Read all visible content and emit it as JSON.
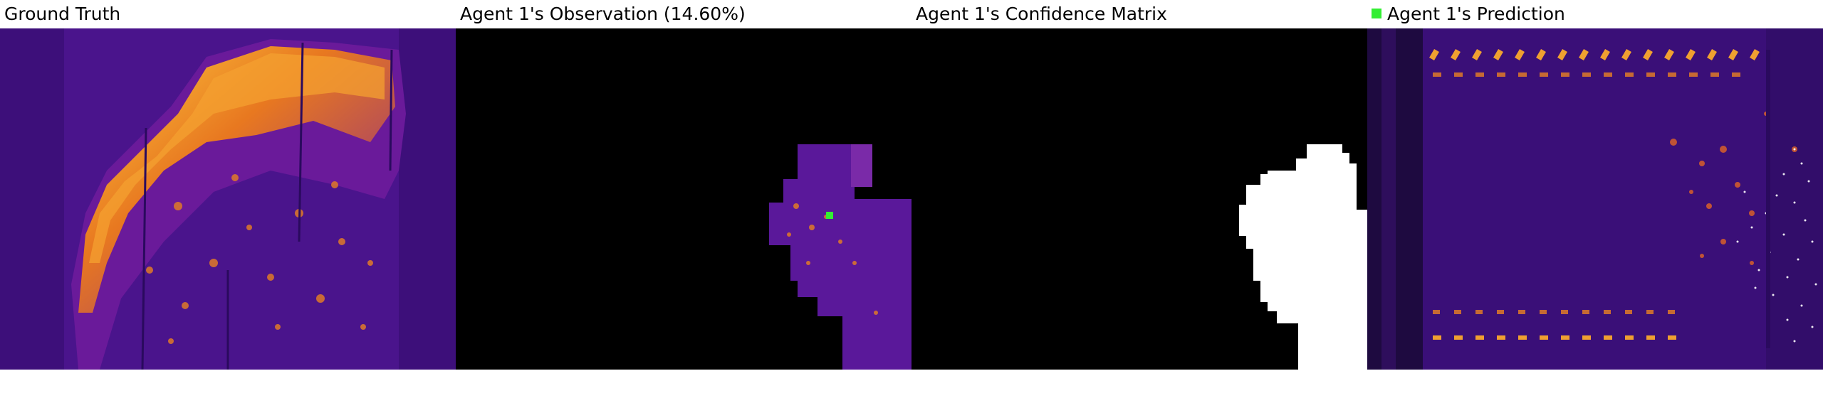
{
  "panels": [
    {
      "title": "Ground Truth"
    },
    {
      "title": "Agent 1's Observation (14.60%)"
    },
    {
      "title": "Agent 1's Confidence Matrix"
    },
    {
      "title": "Agent 1's Prediction"
    }
  ],
  "colors": {
    "heat_dark": "#2a0a5e",
    "heat_mid": "#8a1aa0",
    "heat_hot": "#f08a18",
    "heat_peak": "#ffe060",
    "mask": "#ffffff",
    "background": "#000000",
    "marker": "#33ee33"
  }
}
